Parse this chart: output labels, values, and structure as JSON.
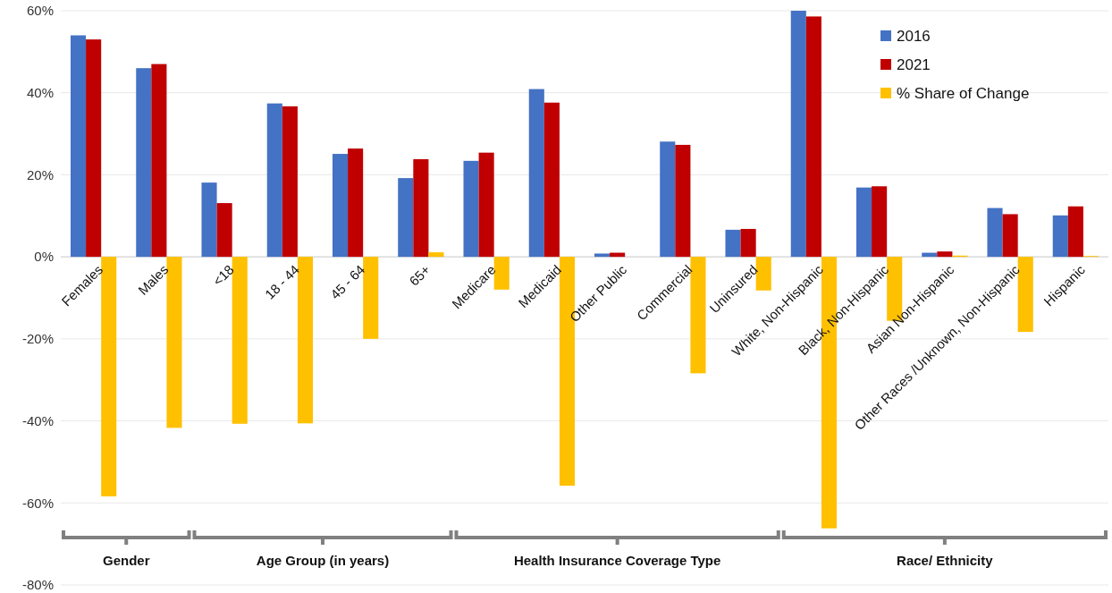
{
  "chart_data": {
    "type": "bar",
    "categories": [
      "Females",
      "Males",
      "<18",
      "18 - 44",
      "45 - 64",
      "65+",
      "Medicare",
      "Medicaid",
      "Other Public",
      "Commercial",
      "Uninsured",
      "White, Non-Hispanic",
      "Black, Non-Hispanic",
      "Asian Non-Hispanic",
      "Other Races /Unknown, Non-Hispanic",
      "Hispanic"
    ],
    "series": [
      {
        "name": "2016",
        "color": "#4472c4",
        "values": [
          54,
          46,
          18.1,
          37.4,
          25.1,
          19.2,
          23.4,
          40.9,
          0.8,
          28.1,
          6.6,
          60,
          16.9,
          1.0,
          11.9,
          10.1
        ]
      },
      {
        "name": "2021",
        "color": "#c00000",
        "values": [
          53,
          47,
          13.1,
          36.7,
          26.4,
          23.8,
          25.4,
          37.6,
          1.0,
          27.3,
          6.8,
          58.6,
          17.2,
          1.3,
          10.4,
          12.3
        ]
      },
      {
        "name": "% Share of Change",
        "color": "#ffc000",
        "values": [
          -58.4,
          -41.7,
          -40.7,
          -40.6,
          -20,
          1.1,
          -8,
          -55.8,
          0,
          -28.4,
          -8.2,
          -66.2,
          -15.6,
          0.3,
          -18.3,
          0.2
        ]
      }
    ],
    "ylim": [
      -80,
      60
    ],
    "yticks": [
      {
        "value": -80,
        "label": "-80%"
      },
      {
        "value": -60,
        "label": "-60%"
      },
      {
        "value": -40,
        "label": "-40%"
      },
      {
        "value": -20,
        "label": "-20%"
      },
      {
        "value": 0,
        "label": "0%"
      },
      {
        "value": 20,
        "label": "20%"
      },
      {
        "value": 40,
        "label": "40%"
      },
      {
        "value": 60,
        "label": "60%"
      }
    ],
    "grid": "y",
    "legend": "top right",
    "annotations": [
      "Gender",
      "Age Group (in years)",
      "Health Insurance Coverage Type",
      "Race/ Ethnicity"
    ]
  }
}
